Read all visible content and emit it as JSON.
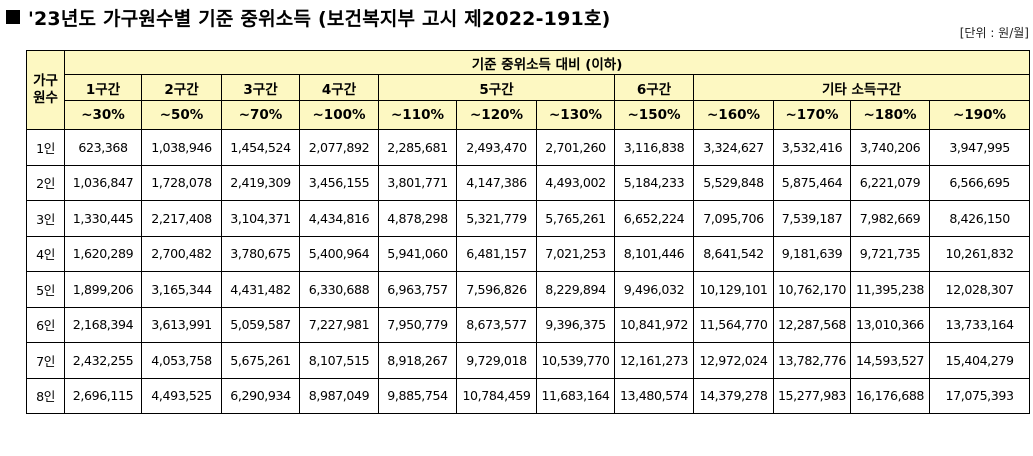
{
  "title": "'23년도 가구원수별 기준 중위소득 (보건복지부 고시 제2022-191호)",
  "unit": "[단위 : 원/월]",
  "table": {
    "corner_line1": "가구",
    "corner_line2": "원수",
    "super_header": "기준 중위소득 대비 (이하)",
    "groups": [
      {
        "label": "1구간",
        "span": 1
      },
      {
        "label": "2구간",
        "span": 1
      },
      {
        "label": "3구간",
        "span": 1
      },
      {
        "label": "4구간",
        "span": 1
      },
      {
        "label": "5구간",
        "span": 3
      },
      {
        "label": "6구간",
        "span": 1
      },
      {
        "label": "기타 소득구간",
        "span": 4
      }
    ],
    "percents": [
      "~30%",
      "~50%",
      "~70%",
      "~100%",
      "~110%",
      "~120%",
      "~130%",
      "~150%",
      "~160%",
      "~170%",
      "~180%",
      "~190%"
    ],
    "rows": [
      {
        "label": "1인",
        "values": [
          "623,368",
          "1,038,946",
          "1,454,524",
          "2,077,892",
          "2,285,681",
          "2,493,470",
          "2,701,260",
          "3,116,838",
          "3,324,627",
          "3,532,416",
          "3,740,206",
          "3,947,995"
        ]
      },
      {
        "label": "2인",
        "values": [
          "1,036,847",
          "1,728,078",
          "2,419,309",
          "3,456,155",
          "3,801,771",
          "4,147,386",
          "4,493,002",
          "5,184,233",
          "5,529,848",
          "5,875,464",
          "6,221,079",
          "6,566,695"
        ]
      },
      {
        "label": "3인",
        "values": [
          "1,330,445",
          "2,217,408",
          "3,104,371",
          "4,434,816",
          "4,878,298",
          "5,321,779",
          "5,765,261",
          "6,652,224",
          "7,095,706",
          "7,539,187",
          "7,982,669",
          "8,426,150"
        ]
      },
      {
        "label": "4인",
        "values": [
          "1,620,289",
          "2,700,482",
          "3,780,675",
          "5,400,964",
          "5,941,060",
          "6,481,157",
          "7,021,253",
          "8,101,446",
          "8,641,542",
          "9,181,639",
          "9,721,735",
          "10,261,832"
        ]
      },
      {
        "label": "5인",
        "values": [
          "1,899,206",
          "3,165,344",
          "4,431,482",
          "6,330,688",
          "6,963,757",
          "7,596,826",
          "8,229,894",
          "9,496,032",
          "10,129,101",
          "10,762,170",
          "11,395,238",
          "12,028,307"
        ]
      },
      {
        "label": "6인",
        "values": [
          "2,168,394",
          "3,613,991",
          "5,059,587",
          "7,227,981",
          "7,950,779",
          "8,673,577",
          "9,396,375",
          "10,841,972",
          "11,564,770",
          "12,287,568",
          "13,010,366",
          "13,733,164"
        ]
      },
      {
        "label": "7인",
        "values": [
          "2,432,255",
          "4,053,758",
          "5,675,261",
          "8,107,515",
          "8,918,267",
          "9,729,018",
          "10,539,770",
          "12,161,273",
          "12,972,024",
          "13,782,776",
          "14,593,527",
          "15,404,279"
        ]
      },
      {
        "label": "8인",
        "values": [
          "2,696,115",
          "4,493,525",
          "6,290,934",
          "8,987,049",
          "9,885,754",
          "10,784,459",
          "11,683,164",
          "13,480,574",
          "14,379,278",
          "15,277,983",
          "16,176,688",
          "17,075,393"
        ]
      }
    ]
  }
}
